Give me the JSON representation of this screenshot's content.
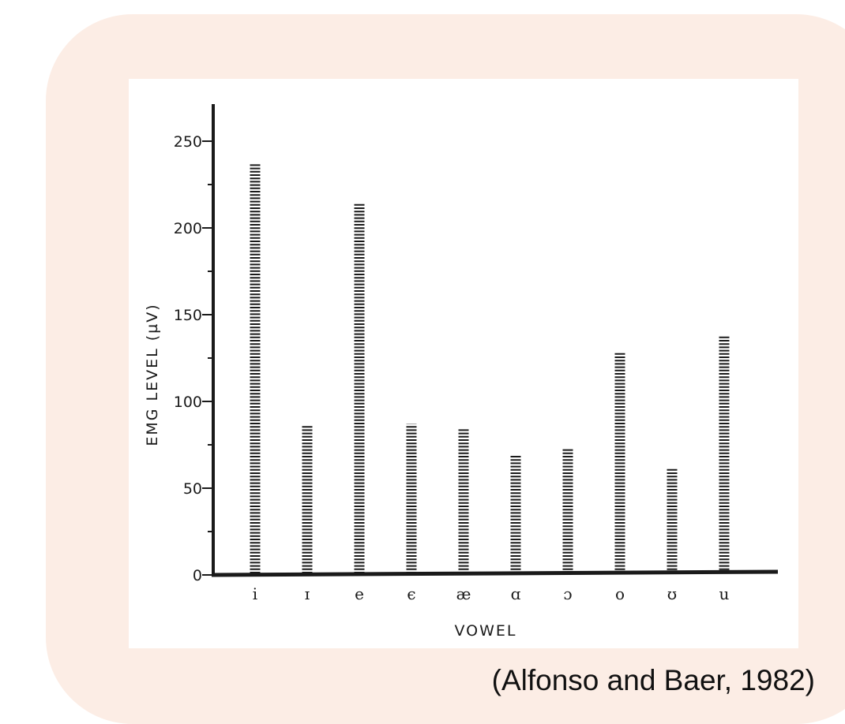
{
  "citation": "(Alfonso and Baer, 1982)",
  "colors": {
    "panel_background": "#fcede5",
    "plot_background": "#ffffff",
    "ink": "#1a1a1a"
  },
  "chart_data": {
    "type": "bar",
    "bar_style": "dashed",
    "title": "",
    "xlabel": "VOWEL",
    "ylabel": "EMG LEVEL (µV)",
    "ylim": [
      0,
      270
    ],
    "yticks": [
      0,
      50,
      100,
      150,
      200,
      250
    ],
    "grid": false,
    "categories": [
      "i",
      "ɪ",
      "e",
      "ϵ",
      "æ",
      "ɑ",
      "ɔ",
      "o",
      "ʊ",
      "u"
    ],
    "values": [
      237,
      86,
      214,
      87,
      84,
      69,
      73,
      128,
      62,
      138
    ]
  }
}
